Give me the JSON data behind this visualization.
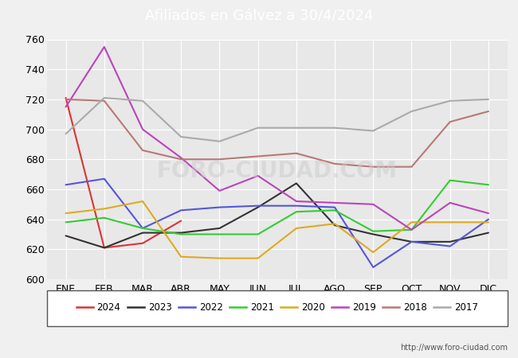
{
  "title": "Afiliados en Gálvez a 30/4/2024",
  "title_bg_color": "#4d7fcc",
  "title_text_color": "white",
  "ylim": [
    600,
    760
  ],
  "yticks": [
    600,
    620,
    640,
    660,
    680,
    700,
    720,
    740,
    760
  ],
  "months": [
    "ENE",
    "FEB",
    "MAR",
    "ABR",
    "MAY",
    "JUN",
    "JUL",
    "AGO",
    "SEP",
    "OCT",
    "NOV",
    "DIC"
  ],
  "url": "http://www.foro-ciudad.com",
  "series": {
    "2024": {
      "color": "#dd3333",
      "data": [
        721,
        621,
        624,
        639,
        null,
        null,
        null,
        null,
        null,
        null,
        null,
        null
      ]
    },
    "2023": {
      "color": "#333333",
      "data": [
        629,
        621,
        631,
        631,
        634,
        648,
        664,
        636,
        630,
        625,
        625,
        631
      ]
    },
    "2022": {
      "color": "#5555dd",
      "data": [
        663,
        667,
        634,
        646,
        648,
        649,
        649,
        648,
        608,
        625,
        622,
        640
      ]
    },
    "2021": {
      "color": "#33cc33",
      "data": [
        638,
        641,
        634,
        630,
        630,
        630,
        645,
        646,
        632,
        633,
        666,
        663
      ]
    },
    "2020": {
      "color": "#ddaa22",
      "data": [
        644,
        647,
        652,
        615,
        614,
        614,
        634,
        637,
        618,
        638,
        638,
        638
      ]
    },
    "2019": {
      "color": "#bb44bb",
      "data": [
        715,
        755,
        700,
        681,
        659,
        669,
        652,
        651,
        650,
        633,
        651,
        644
      ]
    },
    "2018": {
      "color": "#bb7777",
      "data": [
        720,
        719,
        686,
        680,
        680,
        682,
        684,
        677,
        675,
        675,
        705,
        712
      ]
    },
    "2017": {
      "color": "#aaaaaa",
      "data": [
        697,
        721,
        719,
        695,
        692,
        701,
        701,
        701,
        699,
        712,
        719,
        720
      ]
    }
  },
  "legend_order": [
    "2024",
    "2023",
    "2022",
    "2021",
    "2020",
    "2019",
    "2018",
    "2017"
  ],
  "background_color": "#f0f0f0",
  "plot_bg_color": "#e8e8e8",
  "grid_color": "white",
  "watermark_text": "FORO-CIUDAD.COM",
  "watermark_color": "#cccccc",
  "watermark_alpha": 0.5,
  "font_size": 9,
  "title_fontsize": 13
}
